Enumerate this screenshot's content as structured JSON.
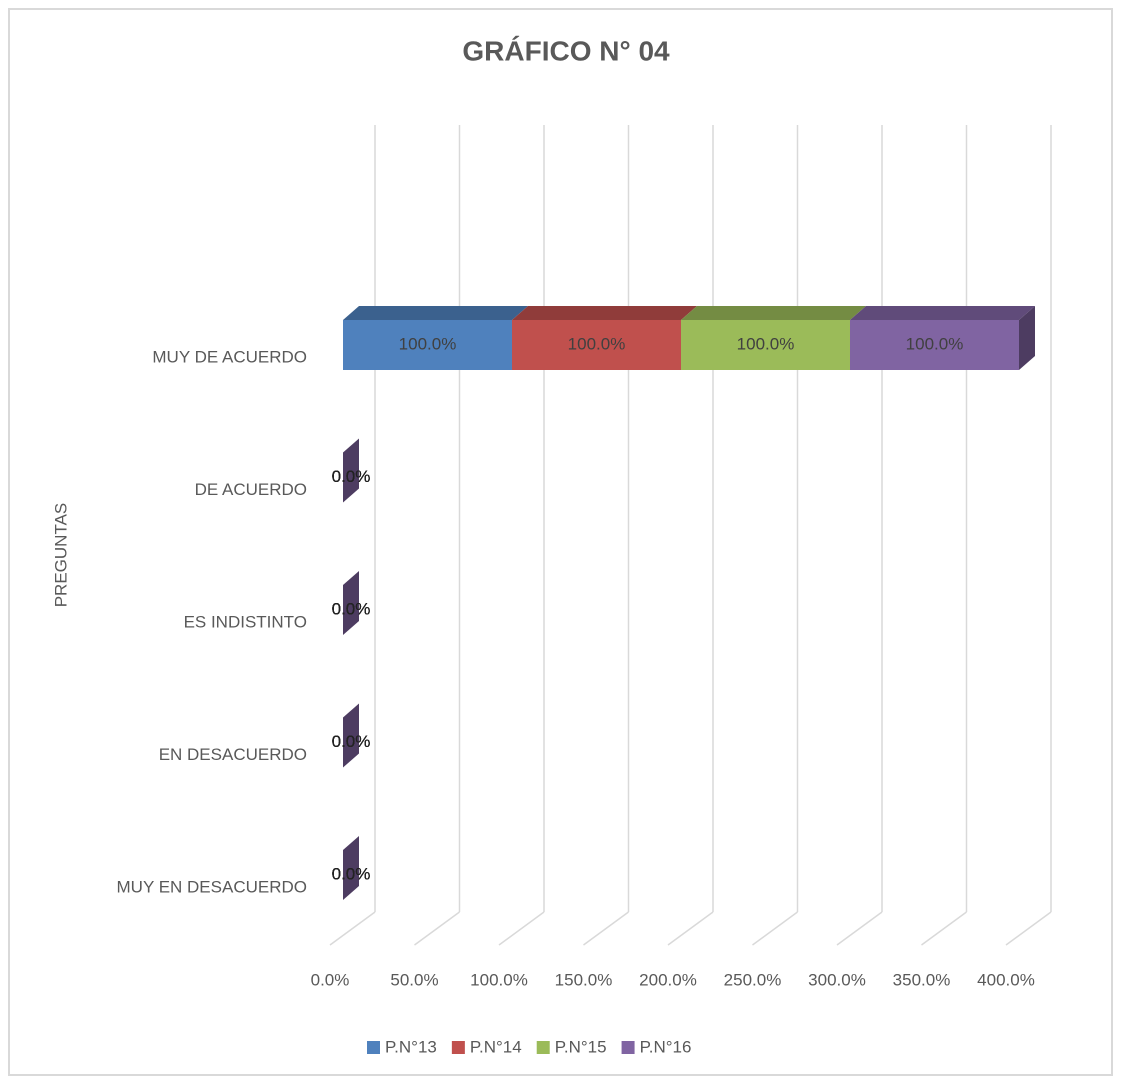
{
  "chart_data": {
    "type": "bar3d_stacked_horizontal",
    "title": "GRÁFICO N° 04",
    "ylabel": "PREGUNTAS",
    "categories": [
      "MUY DE ACUERDO",
      "DE ACUERDO",
      "ES INDISTINTO",
      "EN DESACUERDO",
      "MUY EN DESACUERDO"
    ],
    "series": [
      {
        "name": "P.N°13",
        "color": "#4f81bd",
        "values": [
          100,
          0,
          0,
          0,
          0
        ],
        "value_labels": [
          "100.0%",
          "0.0%",
          "0.0%",
          "0.0%",
          "0.0%"
        ]
      },
      {
        "name": "P.N°14",
        "color": "#c0504d",
        "values": [
          100,
          0,
          0,
          0,
          0
        ],
        "value_labels": [
          "100.0%",
          "0.0%",
          "0.0%",
          "0.0%",
          "0.0%"
        ]
      },
      {
        "name": "P.N°15",
        "color": "#9bbb59",
        "values": [
          100,
          0,
          0,
          0,
          0
        ],
        "value_labels": [
          "100.0%",
          "0.0%",
          "0.0%",
          "0.0%",
          "0.0%"
        ]
      },
      {
        "name": "P.N°16",
        "color": "#8064a2",
        "values": [
          100,
          0,
          0,
          0,
          0
        ],
        "value_labels": [
          "100.0%",
          "0.0%",
          "0.0%",
          "0.0%",
          "0.0%"
        ]
      }
    ],
    "xlim": [
      0,
      400
    ],
    "xticks": [
      {
        "value": 0,
        "label": "0.0%"
      },
      {
        "value": 50,
        "label": "50.0%"
      },
      {
        "value": 100,
        "label": "100.0%"
      },
      {
        "value": 150,
        "label": "150.0%"
      },
      {
        "value": 200,
        "label": "200.0%"
      },
      {
        "value": 250,
        "label": "250.0%"
      },
      {
        "value": 300,
        "label": "300.0%"
      },
      {
        "value": 350,
        "label": "350.0%"
      },
      {
        "value": 400,
        "label": "400.0%"
      }
    ],
    "grid": true,
    "legend": "bottom"
  }
}
